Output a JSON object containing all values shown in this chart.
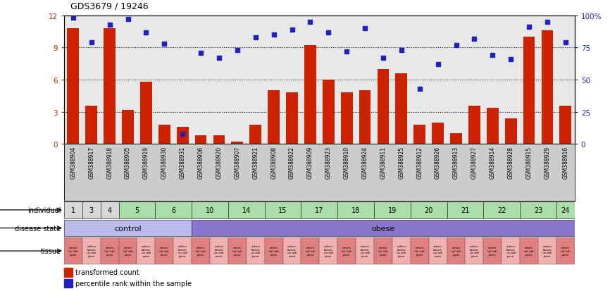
{
  "title": "GDS3679 / 19246",
  "samples": [
    "GSM388904",
    "GSM388917",
    "GSM388918",
    "GSM388905",
    "GSM388919",
    "GSM388930",
    "GSM388931",
    "GSM388906",
    "GSM388920",
    "GSM388907",
    "GSM388921",
    "GSM388908",
    "GSM388922",
    "GSM388909",
    "GSM388923",
    "GSM388910",
    "GSM388924",
    "GSM388911",
    "GSM388925",
    "GSM388912",
    "GSM388926",
    "GSM388913",
    "GSM388927",
    "GSM388914",
    "GSM388928",
    "GSM388915",
    "GSM388929",
    "GSM388916"
  ],
  "bar_values": [
    10.8,
    3.6,
    10.8,
    3.2,
    5.8,
    1.8,
    1.6,
    0.8,
    0.8,
    0.2,
    1.8,
    5.0,
    4.8,
    9.2,
    6.0,
    4.8,
    5.0,
    7.0,
    6.6,
    1.8,
    2.0,
    1.0,
    3.6,
    3.4,
    2.4,
    10.0,
    10.6,
    3.6
  ],
  "dot_values": [
    98,
    79,
    93,
    97,
    87,
    78,
    8,
    71,
    67,
    73,
    83,
    85,
    89,
    95,
    87,
    72,
    90,
    67,
    73,
    43,
    62,
    77,
    82,
    69,
    66,
    91,
    95,
    79
  ],
  "individuals": [
    {
      "label": "1",
      "start": 0,
      "end": 1,
      "color": "#d8d8d8"
    },
    {
      "label": "3",
      "start": 1,
      "end": 2,
      "color": "#d8d8d8"
    },
    {
      "label": "4",
      "start": 2,
      "end": 3,
      "color": "#d8d8d8"
    },
    {
      "label": "5",
      "start": 3,
      "end": 5,
      "color": "#aaddaa"
    },
    {
      "label": "6",
      "start": 5,
      "end": 7,
      "color": "#aaddaa"
    },
    {
      "label": "10",
      "start": 7,
      "end": 9,
      "color": "#aaddaa"
    },
    {
      "label": "14",
      "start": 9,
      "end": 11,
      "color": "#aaddaa"
    },
    {
      "label": "15",
      "start": 11,
      "end": 13,
      "color": "#aaddaa"
    },
    {
      "label": "17",
      "start": 13,
      "end": 15,
      "color": "#aaddaa"
    },
    {
      "label": "18",
      "start": 15,
      "end": 17,
      "color": "#aaddaa"
    },
    {
      "label": "19",
      "start": 17,
      "end": 19,
      "color": "#aaddaa"
    },
    {
      "label": "20",
      "start": 19,
      "end": 21,
      "color": "#aaddaa"
    },
    {
      "label": "21",
      "start": 21,
      "end": 23,
      "color": "#aaddaa"
    },
    {
      "label": "22",
      "start": 23,
      "end": 25,
      "color": "#aaddaa"
    },
    {
      "label": "23",
      "start": 25,
      "end": 27,
      "color": "#aaddaa"
    },
    {
      "label": "24",
      "start": 27,
      "end": 28,
      "color": "#aaddaa"
    }
  ],
  "disease_states": [
    {
      "label": "control",
      "start": 0,
      "end": 7,
      "color": "#bbbbee"
    },
    {
      "label": "obese",
      "start": 7,
      "end": 28,
      "color": "#8877cc"
    }
  ],
  "tissue_pattern": [
    0,
    1,
    0,
    0,
    1,
    0,
    1,
    0,
    1,
    0,
    1,
    0,
    1,
    0,
    1,
    0,
    1,
    0,
    1,
    0,
    1,
    0,
    1,
    0,
    1,
    0,
    1,
    0
  ],
  "tissue_colors": [
    "#e08080",
    "#f0b0b0"
  ],
  "tissue_labels_short": [
    "omen\ntal adi\npose",
    "subcu\ntaneo\nus adi\npose"
  ],
  "ylim_left": [
    0,
    12
  ],
  "ylim_right": [
    0,
    100
  ],
  "yticks_left": [
    0,
    3,
    6,
    9,
    12
  ],
  "yticks_right": [
    0,
    25,
    50,
    75,
    100
  ],
  "bar_color": "#cc2200",
  "dot_color": "#2222bb",
  "axis_bg": "#e8e8e8",
  "label_row_individual": "individual",
  "label_row_disease": "disease state",
  "label_row_tissue": "tissue",
  "legend_bar": "transformed count",
  "legend_dot": "percentile rank within the sample"
}
